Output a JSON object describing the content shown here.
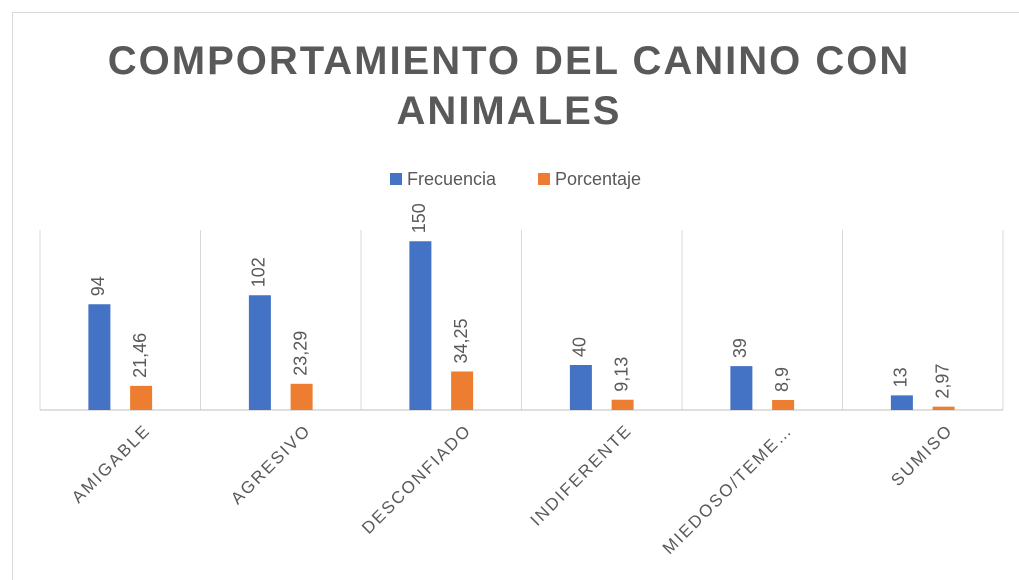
{
  "chart_data": {
    "type": "bar",
    "title": "COMPORTAMIENTO DEL CANINO CON ANIMALES",
    "categories": [
      "AMIGABLE",
      "AGRESIVO",
      "DESCONFIADO",
      "INDIFERENTE",
      "MIEDOSO/TEME…",
      "SUMISO"
    ],
    "series": [
      {
        "name": "Frecuencia",
        "color": "#4472c4",
        "values": [
          94,
          102,
          150,
          40,
          39,
          13
        ]
      },
      {
        "name": "Porcentaje",
        "color": "#ed7d31",
        "values": [
          21.46,
          23.29,
          34.25,
          9.13,
          8.9,
          2.97
        ],
        "value_labels": [
          "21,46",
          "23,29",
          "34,25",
          "9,13",
          "8,9",
          "2,97"
        ]
      }
    ],
    "ylim": [
      0,
      160
    ],
    "legend": "top"
  }
}
